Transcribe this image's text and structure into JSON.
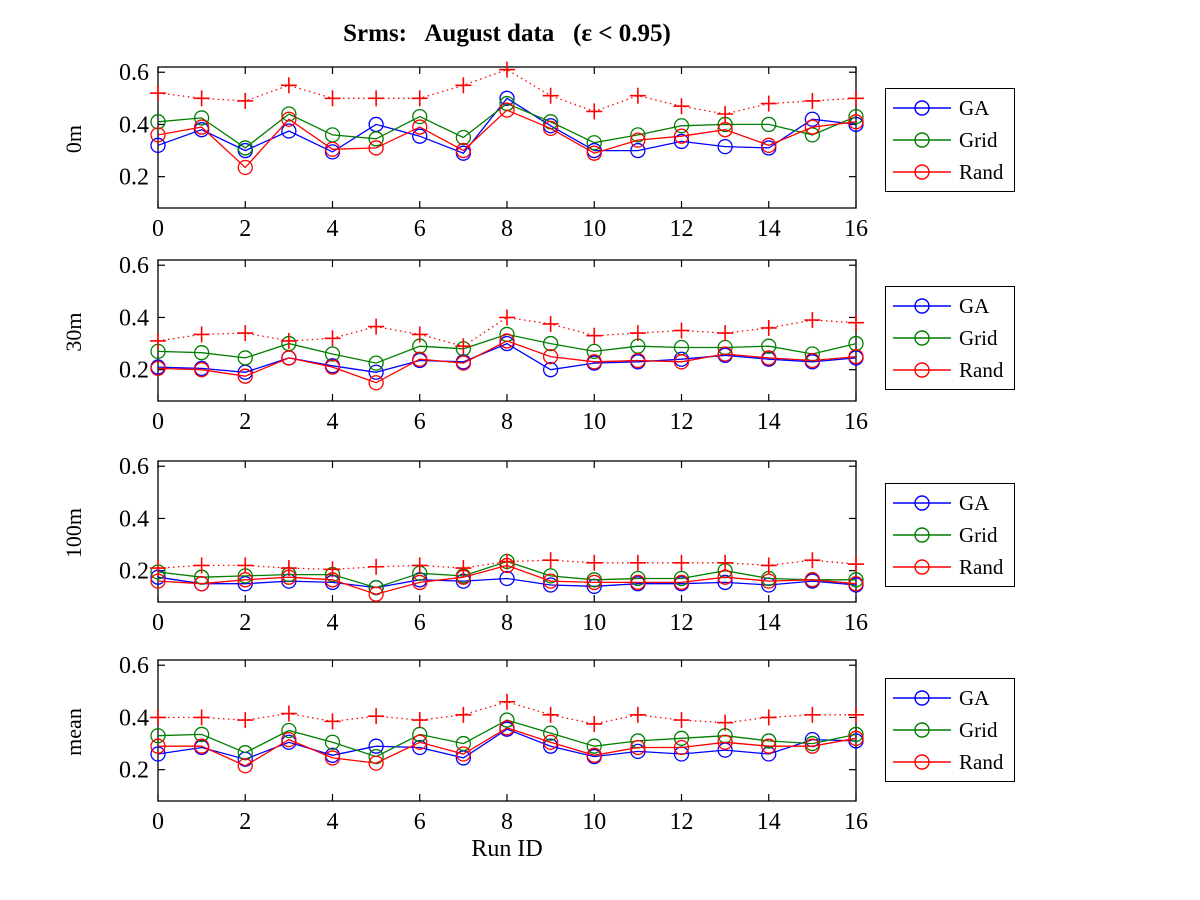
{
  "figure": {
    "title": "Srms:   August data   (ε < 0.95)",
    "xlabel": "Run ID",
    "background": "#ffffff"
  },
  "legend": {
    "entries": [
      {
        "label": "GA",
        "color": "#0000ff",
        "marker": "circle"
      },
      {
        "label": "Grid",
        "color": "#007f00",
        "marker": "circle"
      },
      {
        "label": "Rand",
        "color": "#ff0000",
        "marker": "circle"
      }
    ]
  },
  "chart_data": [
    {
      "type": "line",
      "ylabel": "0m",
      "x": [
        0,
        1,
        2,
        3,
        4,
        5,
        6,
        7,
        8,
        9,
        10,
        11,
        12,
        13,
        14,
        15,
        16
      ],
      "xticks": [
        0,
        2,
        4,
        6,
        8,
        10,
        12,
        14,
        16
      ],
      "yticks": [
        0.2,
        0.4,
        0.6
      ],
      "ylim": [
        0.08,
        0.62
      ],
      "series": [
        {
          "name": "GA",
          "color": "#0000ff",
          "marker": "circle",
          "linestyle": "solid",
          "values": [
            0.32,
            0.38,
            0.3,
            0.375,
            0.295,
            0.4,
            0.355,
            0.29,
            0.5,
            0.395,
            0.3,
            0.3,
            0.335,
            0.315,
            0.31,
            0.42,
            0.4
          ]
        },
        {
          "name": "Grid",
          "color": "#007f00",
          "marker": "circle",
          "linestyle": "solid",
          "values": [
            0.41,
            0.425,
            0.31,
            0.44,
            0.36,
            0.345,
            0.43,
            0.35,
            0.48,
            0.41,
            0.33,
            0.36,
            0.395,
            0.4,
            0.4,
            0.36,
            0.43
          ]
        },
        {
          "name": "Rand",
          "color": "#ff0000",
          "marker": "circle",
          "linestyle": "solid",
          "values": [
            0.36,
            0.39,
            0.235,
            0.42,
            0.305,
            0.31,
            0.39,
            0.3,
            0.455,
            0.385,
            0.29,
            0.34,
            0.355,
            0.38,
            0.32,
            0.39,
            0.41
          ]
        },
        {
          "name": "dotted-plus",
          "color": "#ff0000",
          "marker": "plus",
          "linestyle": "dotted",
          "values": [
            0.52,
            0.5,
            0.49,
            0.55,
            0.5,
            0.5,
            0.5,
            0.55,
            0.61,
            0.51,
            0.45,
            0.51,
            0.47,
            0.44,
            0.48,
            0.49,
            0.5
          ]
        }
      ]
    },
    {
      "type": "line",
      "ylabel": "30m",
      "x": [
        0,
        1,
        2,
        3,
        4,
        5,
        6,
        7,
        8,
        9,
        10,
        11,
        12,
        13,
        14,
        15,
        16
      ],
      "xticks": [
        0,
        2,
        4,
        6,
        8,
        10,
        12,
        14,
        16
      ],
      "yticks": [
        0.2,
        0.4,
        0.6
      ],
      "ylim": [
        0.08,
        0.62
      ],
      "series": [
        {
          "name": "GA",
          "color": "#0000ff",
          "marker": "circle",
          "linestyle": "solid",
          "values": [
            0.21,
            0.205,
            0.19,
            0.245,
            0.215,
            0.19,
            0.235,
            0.23,
            0.3,
            0.2,
            0.225,
            0.23,
            0.24,
            0.255,
            0.24,
            0.23,
            0.245
          ]
        },
        {
          "name": "Grid",
          "color": "#007f00",
          "marker": "circle",
          "linestyle": "solid",
          "values": [
            0.27,
            0.265,
            0.245,
            0.3,
            0.26,
            0.225,
            0.29,
            0.28,
            0.335,
            0.3,
            0.27,
            0.29,
            0.285,
            0.285,
            0.29,
            0.26,
            0.3
          ]
        },
        {
          "name": "Rand",
          "color": "#ff0000",
          "marker": "circle",
          "linestyle": "solid",
          "values": [
            0.205,
            0.2,
            0.175,
            0.245,
            0.21,
            0.15,
            0.24,
            0.225,
            0.31,
            0.25,
            0.23,
            0.235,
            0.23,
            0.26,
            0.245,
            0.235,
            0.25
          ]
        },
        {
          "name": "dotted-plus",
          "color": "#ff0000",
          "marker": "plus",
          "linestyle": "dotted",
          "values": [
            0.31,
            0.335,
            0.34,
            0.31,
            0.32,
            0.365,
            0.335,
            0.29,
            0.4,
            0.375,
            0.33,
            0.34,
            0.35,
            0.34,
            0.36,
            0.39,
            0.38
          ]
        }
      ]
    },
    {
      "type": "line",
      "ylabel": "100m",
      "x": [
        0,
        1,
        2,
        3,
        4,
        5,
        6,
        7,
        8,
        9,
        10,
        11,
        12,
        13,
        14,
        15,
        16
      ],
      "xticks": [
        0,
        2,
        4,
        6,
        8,
        10,
        12,
        14,
        16
      ],
      "yticks": [
        0.2,
        0.4,
        0.6
      ],
      "ylim": [
        0.08,
        0.62
      ],
      "series": [
        {
          "name": "GA",
          "color": "#0000ff",
          "marker": "circle",
          "linestyle": "solid",
          "values": [
            0.175,
            0.15,
            0.15,
            0.16,
            0.155,
            0.135,
            0.165,
            0.16,
            0.17,
            0.145,
            0.14,
            0.15,
            0.15,
            0.155,
            0.145,
            0.16,
            0.145
          ]
        },
        {
          "name": "Grid",
          "color": "#007f00",
          "marker": "circle",
          "linestyle": "solid",
          "values": [
            0.195,
            0.175,
            0.18,
            0.185,
            0.185,
            0.135,
            0.19,
            0.18,
            0.235,
            0.18,
            0.165,
            0.17,
            0.17,
            0.2,
            0.17,
            0.165,
            0.165
          ]
        },
        {
          "name": "Rand",
          "color": "#ff0000",
          "marker": "circle",
          "linestyle": "solid",
          "values": [
            0.16,
            0.15,
            0.165,
            0.175,
            0.165,
            0.11,
            0.155,
            0.175,
            0.22,
            0.16,
            0.155,
            0.155,
            0.155,
            0.175,
            0.16,
            0.165,
            0.15
          ]
        },
        {
          "name": "dotted-plus",
          "color": "#ff0000",
          "marker": "plus",
          "linestyle": "dotted",
          "values": [
            0.21,
            0.22,
            0.22,
            0.21,
            0.205,
            0.215,
            0.22,
            0.21,
            0.235,
            0.24,
            0.23,
            0.23,
            0.23,
            0.23,
            0.22,
            0.24,
            0.225
          ]
        }
      ]
    },
    {
      "type": "line",
      "ylabel": "mean",
      "x": [
        0,
        1,
        2,
        3,
        4,
        5,
        6,
        7,
        8,
        9,
        10,
        11,
        12,
        13,
        14,
        15,
        16
      ],
      "xticks": [
        0,
        2,
        4,
        6,
        8,
        10,
        12,
        14,
        16
      ],
      "yticks": [
        0.2,
        0.4,
        0.6
      ],
      "ylim": [
        0.08,
        0.62
      ],
      "series": [
        {
          "name": "GA",
          "color": "#0000ff",
          "marker": "circle",
          "linestyle": "solid",
          "values": [
            0.26,
            0.285,
            0.24,
            0.305,
            0.255,
            0.29,
            0.285,
            0.245,
            0.355,
            0.29,
            0.25,
            0.27,
            0.26,
            0.275,
            0.26,
            0.315,
            0.31
          ]
        },
        {
          "name": "Grid",
          "color": "#007f00",
          "marker": "circle",
          "linestyle": "solid",
          "values": [
            0.33,
            0.335,
            0.265,
            0.35,
            0.305,
            0.25,
            0.335,
            0.3,
            0.39,
            0.34,
            0.29,
            0.31,
            0.32,
            0.33,
            0.31,
            0.3,
            0.335
          ]
        },
        {
          "name": "Rand",
          "color": "#ff0000",
          "marker": "circle",
          "linestyle": "solid",
          "values": [
            0.29,
            0.29,
            0.215,
            0.315,
            0.245,
            0.225,
            0.305,
            0.26,
            0.36,
            0.305,
            0.255,
            0.285,
            0.285,
            0.305,
            0.29,
            0.29,
            0.32
          ]
        },
        {
          "name": "dotted-plus",
          "color": "#ff0000",
          "marker": "plus",
          "linestyle": "dotted",
          "values": [
            0.4,
            0.4,
            0.39,
            0.415,
            0.385,
            0.405,
            0.39,
            0.41,
            0.46,
            0.41,
            0.375,
            0.41,
            0.39,
            0.38,
            0.4,
            0.41,
            0.41
          ]
        }
      ]
    }
  ]
}
